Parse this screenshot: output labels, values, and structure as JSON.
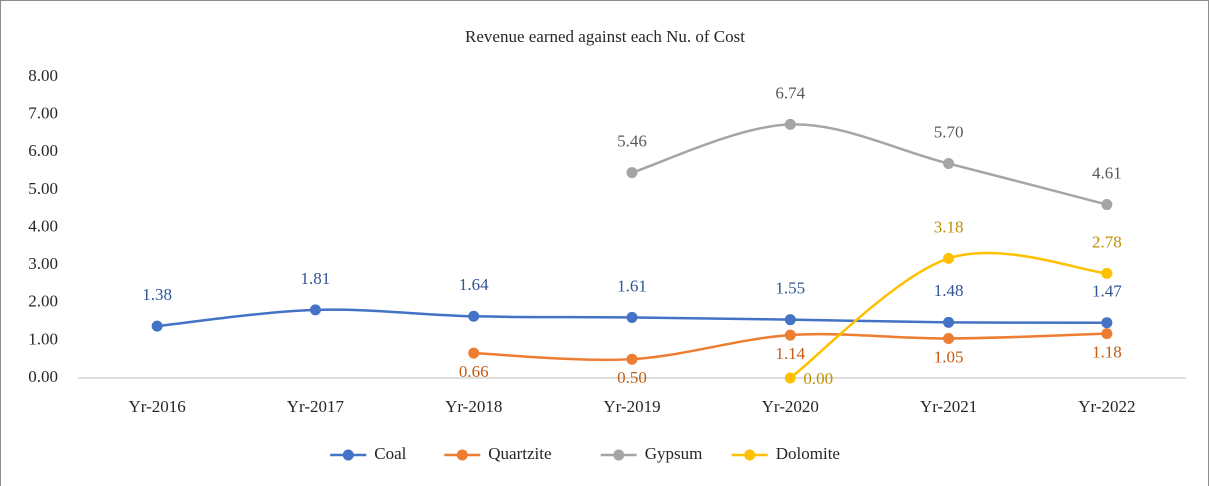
{
  "chart_data": {
    "type": "line",
    "title": "Revenue earned against each Nu. of Cost",
    "categories": [
      "Yr-2016",
      "Yr-2017",
      "Yr-2018",
      "Yr-2019",
      "Yr-2020",
      "Yr-2021",
      "Yr-2022"
    ],
    "series": [
      {
        "name": "Coal",
        "color": "#4472c4",
        "label_color": "#2f5597",
        "label_position": "above",
        "values": [
          1.38,
          1.81,
          1.64,
          1.61,
          1.55,
          1.48,
          1.47
        ],
        "value_labels": [
          "1.38",
          "1.81",
          "1.64",
          "1.61",
          "1.55",
          "1.48",
          "1.47"
        ]
      },
      {
        "name": "Quartzite",
        "color": "#ed7d31",
        "label_color": "#c55a11",
        "label_position": "below",
        "values": [
          null,
          null,
          0.66,
          0.5,
          1.14,
          1.05,
          1.18
        ],
        "value_labels": [
          null,
          null,
          "0.66",
          "0.50",
          "1.14",
          "1.05",
          "1.18"
        ]
      },
      {
        "name": "Gypsum",
        "color": "#a5a5a5",
        "label_color": "#595959",
        "label_position": "above",
        "values": [
          null,
          null,
          null,
          5.46,
          6.74,
          5.7,
          4.61
        ],
        "value_labels": [
          null,
          null,
          null,
          "5.46",
          "6.74",
          "5.70",
          "4.61"
        ]
      },
      {
        "name": "Dolomite",
        "color": "#ffc000",
        "label_color": "#bf9000",
        "label_position": "above",
        "values": [
          null,
          null,
          null,
          null,
          0,
          3.18,
          2.78
        ],
        "value_labels": [
          null,
          null,
          null,
          null,
          "0.00",
          "3.18",
          "2.78"
        ]
      }
    ],
    "ylim": [
      0,
      8
    ],
    "yticks": [
      {
        "value": 0,
        "label": "0.00"
      },
      {
        "value": 1,
        "label": "1.00"
      },
      {
        "value": 2,
        "label": "2.00"
      },
      {
        "value": 3,
        "label": "3.00"
      },
      {
        "value": 4,
        "label": "4.00"
      },
      {
        "value": 5,
        "label": "5.00"
      },
      {
        "value": 6,
        "label": "6.00"
      },
      {
        "value": 7,
        "label": "7.00"
      },
      {
        "value": 8,
        "label": "8.00"
      }
    ],
    "grid": false,
    "smooth": true,
    "legend": "bottom"
  }
}
